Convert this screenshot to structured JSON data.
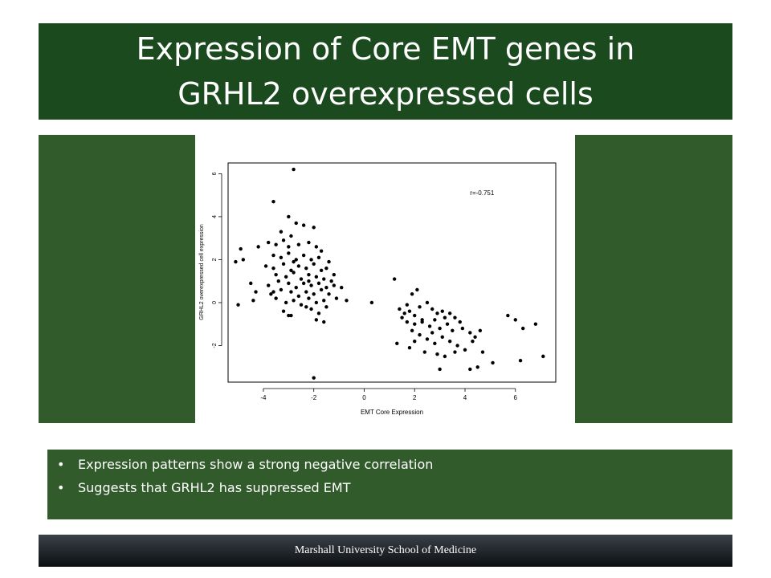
{
  "slide": {
    "title": "Expression of Core EMT genes in GRHL2 overexpressed cells",
    "bullets": [
      "Expression patterns show a strong negative correlation",
      "Suggests that GRHL2 has suppressed EMT"
    ],
    "bullet_glyph": "•",
    "footer": "Marshall University School of Medicine",
    "colors": {
      "title_bg": "#1c4a1f",
      "panel_bg": "#325b2c",
      "footer_bg": "#1a1e22",
      "text": "#ffffff",
      "points": "#000000"
    }
  },
  "chart_data": {
    "type": "scatter",
    "title": "",
    "xlabel": "EMT Core Expression",
    "ylabel": "GRHL2 overexpressed cell expression",
    "xlim": [
      -5.4,
      7.6
    ],
    "ylim": [
      -3.7,
      6.5
    ],
    "xticks": [
      -4,
      -2,
      0,
      2,
      4,
      6
    ],
    "yticks": [
      -2,
      0,
      2,
      4,
      6
    ],
    "grid": false,
    "annotation": "r=-0.751",
    "annotation_pos": [
      4.2,
      5.0
    ],
    "points": [
      [
        -2.8,
        6.2
      ],
      [
        -3.6,
        4.7
      ],
      [
        -3.0,
        4.0
      ],
      [
        -2.7,
        3.7
      ],
      [
        -2.4,
        3.6
      ],
      [
        -2.0,
        3.5
      ],
      [
        -3.3,
        3.3
      ],
      [
        -2.9,
        3.1
      ],
      [
        -4.9,
        2.5
      ],
      [
        -4.2,
        2.6
      ],
      [
        -3.8,
        2.8
      ],
      [
        -3.5,
        2.7
      ],
      [
        -3.2,
        2.9
      ],
      [
        -3.0,
        2.6
      ],
      [
        -2.6,
        2.7
      ],
      [
        -2.2,
        2.8
      ],
      [
        -1.9,
        2.6
      ],
      [
        -1.7,
        2.4
      ],
      [
        -5.1,
        1.9
      ],
      [
        -4.8,
        2.0
      ],
      [
        -3.6,
        2.2
      ],
      [
        -3.3,
        2.1
      ],
      [
        -3.0,
        2.3
      ],
      [
        -2.7,
        2.0
      ],
      [
        -2.4,
        2.2
      ],
      [
        -2.1,
        2.0
      ],
      [
        -1.8,
        2.1
      ],
      [
        -3.9,
        1.7
      ],
      [
        -3.6,
        1.6
      ],
      [
        -3.2,
        1.8
      ],
      [
        -2.9,
        1.5
      ],
      [
        -2.6,
        1.7
      ],
      [
        -2.3,
        1.6
      ],
      [
        -2.0,
        1.8
      ],
      [
        -1.7,
        1.5
      ],
      [
        -1.5,
        1.6
      ],
      [
        -3.5,
        1.3
      ],
      [
        -3.1,
        1.2
      ],
      [
        -2.8,
        1.4
      ],
      [
        -2.5,
        1.1
      ],
      [
        -2.2,
        1.3
      ],
      [
        -1.9,
        1.2
      ],
      [
        -1.6,
        1.1
      ],
      [
        -1.3,
        1.0
      ],
      [
        -4.5,
        0.9
      ],
      [
        -3.8,
        0.8
      ],
      [
        -3.4,
        1.0
      ],
      [
        -3.0,
        0.9
      ],
      [
        -2.7,
        0.7
      ],
      [
        -2.4,
        0.9
      ],
      [
        -2.1,
        0.8
      ],
      [
        -1.8,
        0.9
      ],
      [
        -1.5,
        0.7
      ],
      [
        -1.2,
        0.8
      ],
      [
        -4.3,
        0.5
      ],
      [
        -3.7,
        0.4
      ],
      [
        -3.3,
        0.6
      ],
      [
        -2.9,
        0.5
      ],
      [
        -2.6,
        0.3
      ],
      [
        -2.3,
        0.5
      ],
      [
        -2.0,
        0.4
      ],
      [
        -1.7,
        0.6
      ],
      [
        -1.4,
        0.4
      ],
      [
        -0.9,
        0.7
      ],
      [
        -4.4,
        0.1
      ],
      [
        -3.5,
        0.2
      ],
      [
        -3.1,
        0.0
      ],
      [
        -2.8,
        0.1
      ],
      [
        -2.5,
        -0.1
      ],
      [
        -2.2,
        0.2
      ],
      [
        -1.9,
        0.0
      ],
      [
        -1.6,
        0.1
      ],
      [
        -1.1,
        0.2
      ],
      [
        -0.7,
        0.1
      ],
      [
        -5.0,
        -0.1
      ],
      [
        -3.2,
        -0.4
      ],
      [
        -2.9,
        -0.6
      ],
      [
        -2.1,
        -0.3
      ],
      [
        -1.8,
        -0.5
      ],
      [
        -1.5,
        -0.2
      ],
      [
        -1.9,
        -0.8
      ],
      [
        -1.6,
        -0.9
      ],
      [
        -2.0,
        -3.5
      ],
      [
        -3.0,
        -0.6
      ],
      [
        -2.3,
        -0.2
      ],
      [
        -1.4,
        1.9
      ],
      [
        -2.2,
        1.0
      ],
      [
        -3.6,
        0.5
      ],
      [
        -2.8,
        1.9
      ],
      [
        -1.2,
        1.3
      ],
      [
        0.3,
        0.0
      ],
      [
        1.2,
        1.1
      ],
      [
        1.9,
        0.4
      ],
      [
        2.1,
        0.6
      ],
      [
        1.4,
        -0.3
      ],
      [
        1.7,
        -0.1
      ],
      [
        1.8,
        -0.4
      ],
      [
        2.0,
        -0.6
      ],
      [
        2.2,
        -0.2
      ],
      [
        2.5,
        0.0
      ],
      [
        2.7,
        -0.3
      ],
      [
        2.9,
        -0.5
      ],
      [
        3.1,
        -0.4
      ],
      [
        3.4,
        -0.5
      ],
      [
        3.6,
        -0.7
      ],
      [
        3.8,
        -0.9
      ],
      [
        1.5,
        -0.7
      ],
      [
        1.7,
        -0.9
      ],
      [
        2.0,
        -1.0
      ],
      [
        2.3,
        -0.8
      ],
      [
        2.6,
        -1.1
      ],
      [
        2.8,
        -0.8
      ],
      [
        3.0,
        -1.2
      ],
      [
        3.3,
        -1.0
      ],
      [
        3.5,
        -1.3
      ],
      [
        3.9,
        -1.2
      ],
      [
        4.2,
        -1.4
      ],
      [
        4.4,
        -1.6
      ],
      [
        4.6,
        -1.3
      ],
      [
        1.9,
        -1.3
      ],
      [
        2.2,
        -1.5
      ],
      [
        2.5,
        -1.7
      ],
      [
        2.8,
        -1.9
      ],
      [
        3.1,
        -1.6
      ],
      [
        3.4,
        -1.8
      ],
      [
        3.7,
        -2.0
      ],
      [
        4.0,
        -2.2
      ],
      [
        4.3,
        -1.8
      ],
      [
        1.3,
        -1.9
      ],
      [
        1.8,
        -2.1
      ],
      [
        2.4,
        -2.3
      ],
      [
        2.9,
        -2.4
      ],
      [
        3.2,
        -2.5
      ],
      [
        3.6,
        -2.3
      ],
      [
        4.7,
        -2.3
      ],
      [
        3.0,
        -3.1
      ],
      [
        4.2,
        -3.1
      ],
      [
        4.5,
        -3.0
      ],
      [
        5.1,
        -2.8
      ],
      [
        5.7,
        -0.6
      ],
      [
        6.0,
        -0.8
      ],
      [
        6.3,
        -1.2
      ],
      [
        6.8,
        -1.0
      ],
      [
        7.1,
        -2.5
      ],
      [
        6.2,
        -2.7
      ],
      [
        2.3,
        -0.9
      ],
      [
        1.6,
        -0.5
      ],
      [
        2.7,
        -1.4
      ],
      [
        3.2,
        -0.7
      ],
      [
        2.0,
        -1.8
      ]
    ]
  }
}
